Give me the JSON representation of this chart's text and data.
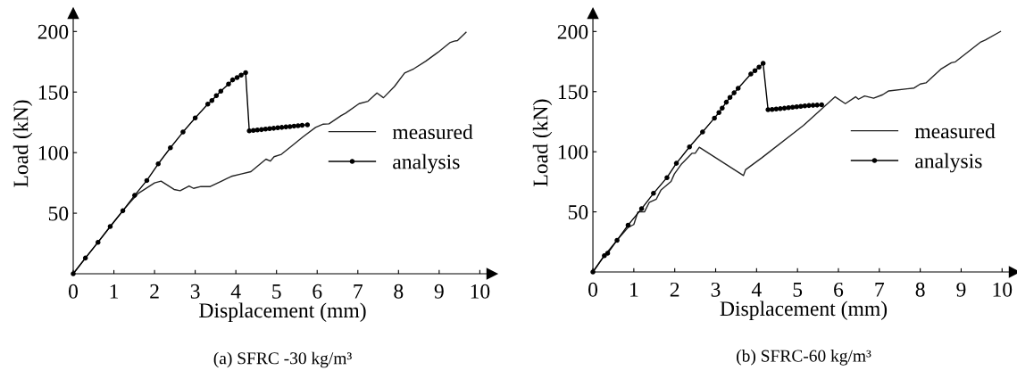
{
  "chart_data": [
    {
      "type": "line",
      "xlabel": "Displacement (mm)",
      "ylabel": "Load (kN)",
      "xlim": [
        0,
        10.3
      ],
      "ylim": [
        0,
        215
      ],
      "xticks": [
        0,
        1,
        2,
        3,
        4,
        5,
        6,
        7,
        8,
        9,
        10
      ],
      "yticks": [
        50,
        100,
        150,
        200
      ],
      "grid": false,
      "legend": "center right",
      "annotations": [
        "(a) SFRC -30 kg/m³"
      ],
      "series": [
        {
          "name": "measured",
          "color": "#222222",
          "marker": "none",
          "x": [
            0,
            0.3,
            0.61,
            0.91,
            1.22,
            1.4,
            1.6,
            2.0,
            2.16,
            2.48,
            2.63,
            2.85,
            2.96,
            3.14,
            3.37,
            3.65,
            3.89,
            4.13,
            4.37,
            4.74,
            4.85,
            4.94,
            5.12,
            5.38,
            5.65,
            5.96,
            6.15,
            6.29,
            6.59,
            6.7,
            7.03,
            7.25,
            7.47,
            7.63,
            7.9,
            8.15,
            8.38,
            8.67,
            8.97,
            9.26,
            9.37,
            9.45,
            9.66
          ],
          "values": [
            0,
            13,
            26,
            39,
            52,
            59,
            66.4,
            75,
            76.5,
            69.6,
            68.6,
            72.5,
            70.5,
            72,
            72,
            76.5,
            80.4,
            82.4,
            84.3,
            94.6,
            93,
            96.6,
            98.6,
            105.6,
            113,
            120.8,
            123.5,
            123.8,
            130.6,
            132.6,
            140.4,
            142.4,
            149.3,
            145.3,
            154.6,
            165.7,
            169.3,
            175.5,
            182.8,
            190.7,
            192,
            192.5,
            199.3
          ]
        },
        {
          "name": "analysis",
          "color": "#000000",
          "marker": "circle",
          "x": [
            0,
            0.3,
            0.61,
            0.91,
            1.22,
            1.51,
            1.81,
            2.09,
            2.39,
            2.7,
            3.0,
            3.31,
            3.41,
            3.52,
            3.63,
            3.82,
            3.92,
            4.03,
            4.13,
            4.24,
            4.33,
            4.43,
            4.53,
            4.63,
            4.73,
            4.83,
            4.93,
            5.03,
            5.13,
            5.23,
            5.33,
            5.43,
            5.53,
            5.63,
            5.76
          ],
          "values": [
            0,
            13,
            26,
            39,
            52,
            64.7,
            77,
            90.7,
            104,
            117,
            128.6,
            140,
            143,
            147,
            150.7,
            156.6,
            160,
            162,
            164,
            166,
            118,
            118.4,
            118.7,
            119,
            119.4,
            119.8,
            120.1,
            120.5,
            120.8,
            121.2,
            121.5,
            121.9,
            122.2,
            122.6,
            123
          ]
        }
      ]
    },
    {
      "type": "line",
      "xlabel": "Displacement (mm)",
      "ylabel": "Load (kN)",
      "xlim": [
        0,
        10.3
      ],
      "ylim": [
        0,
        215
      ],
      "xticks": [
        0,
        1,
        2,
        3,
        4,
        5,
        6,
        7,
        8,
        9,
        10
      ],
      "yticks": [
        50,
        100,
        150,
        200
      ],
      "grid": false,
      "legend": "center right",
      "annotations": [
        "(b) SFRC-60 kg/m³"
      ],
      "series": [
        {
          "name": "measured",
          "color": "#222222",
          "marker": "none",
          "x": [
            0,
            0.28,
            0.59,
            0.86,
            1.0,
            1.1,
            1.26,
            1.38,
            1.55,
            1.66,
            1.91,
            1.99,
            2.17,
            2.42,
            2.5,
            2.6,
            3.68,
            3.73,
            4.13,
            5.15,
            5.92,
            6.17,
            6.42,
            6.49,
            6.64,
            6.86,
            7.08,
            7.23,
            7.85,
            8.0,
            8.14,
            8.5,
            8.76,
            8.86,
            9.48,
            9.59,
            9.96
          ],
          "values": [
            0,
            13.6,
            26.4,
            37,
            39.5,
            50,
            50,
            58,
            60.6,
            68,
            75.3,
            81.5,
            90,
            98.7,
            98.7,
            103.7,
            80.2,
            85,
            95,
            122,
            145.7,
            140,
            145.7,
            143.7,
            146.4,
            144.5,
            147.4,
            150.6,
            153,
            156.3,
            157.3,
            168.6,
            174,
            174.8,
            191.3,
            193,
            200
          ]
        },
        {
          "name": "analysis",
          "color": "#000000",
          "marker": "circle",
          "x": [
            0,
            0.28,
            0.36,
            0.59,
            0.86,
            1.19,
            1.48,
            1.81,
            2.04,
            2.36,
            2.68,
            2.97,
            3.08,
            3.16,
            3.26,
            3.35,
            3.45,
            3.55,
            3.86,
            3.96,
            4.06,
            4.16,
            4.28,
            4.38,
            4.48,
            4.58,
            4.68,
            4.78,
            4.88,
            4.98,
            5.08,
            5.18,
            5.28,
            5.38,
            5.48,
            5.59
          ],
          "values": [
            0,
            13.6,
            15.6,
            26.4,
            39,
            52.6,
            65.4,
            78.5,
            90.4,
            104,
            116.5,
            128,
            132.6,
            136.3,
            141.2,
            145.2,
            149,
            152.8,
            164.7,
            167.4,
            170.4,
            173.6,
            135,
            135.2,
            135.5,
            135.8,
            136.2,
            136.6,
            137,
            137.4,
            137.8,
            138.2,
            138.4,
            138.6,
            138.8,
            139
          ]
        }
      ]
    }
  ]
}
